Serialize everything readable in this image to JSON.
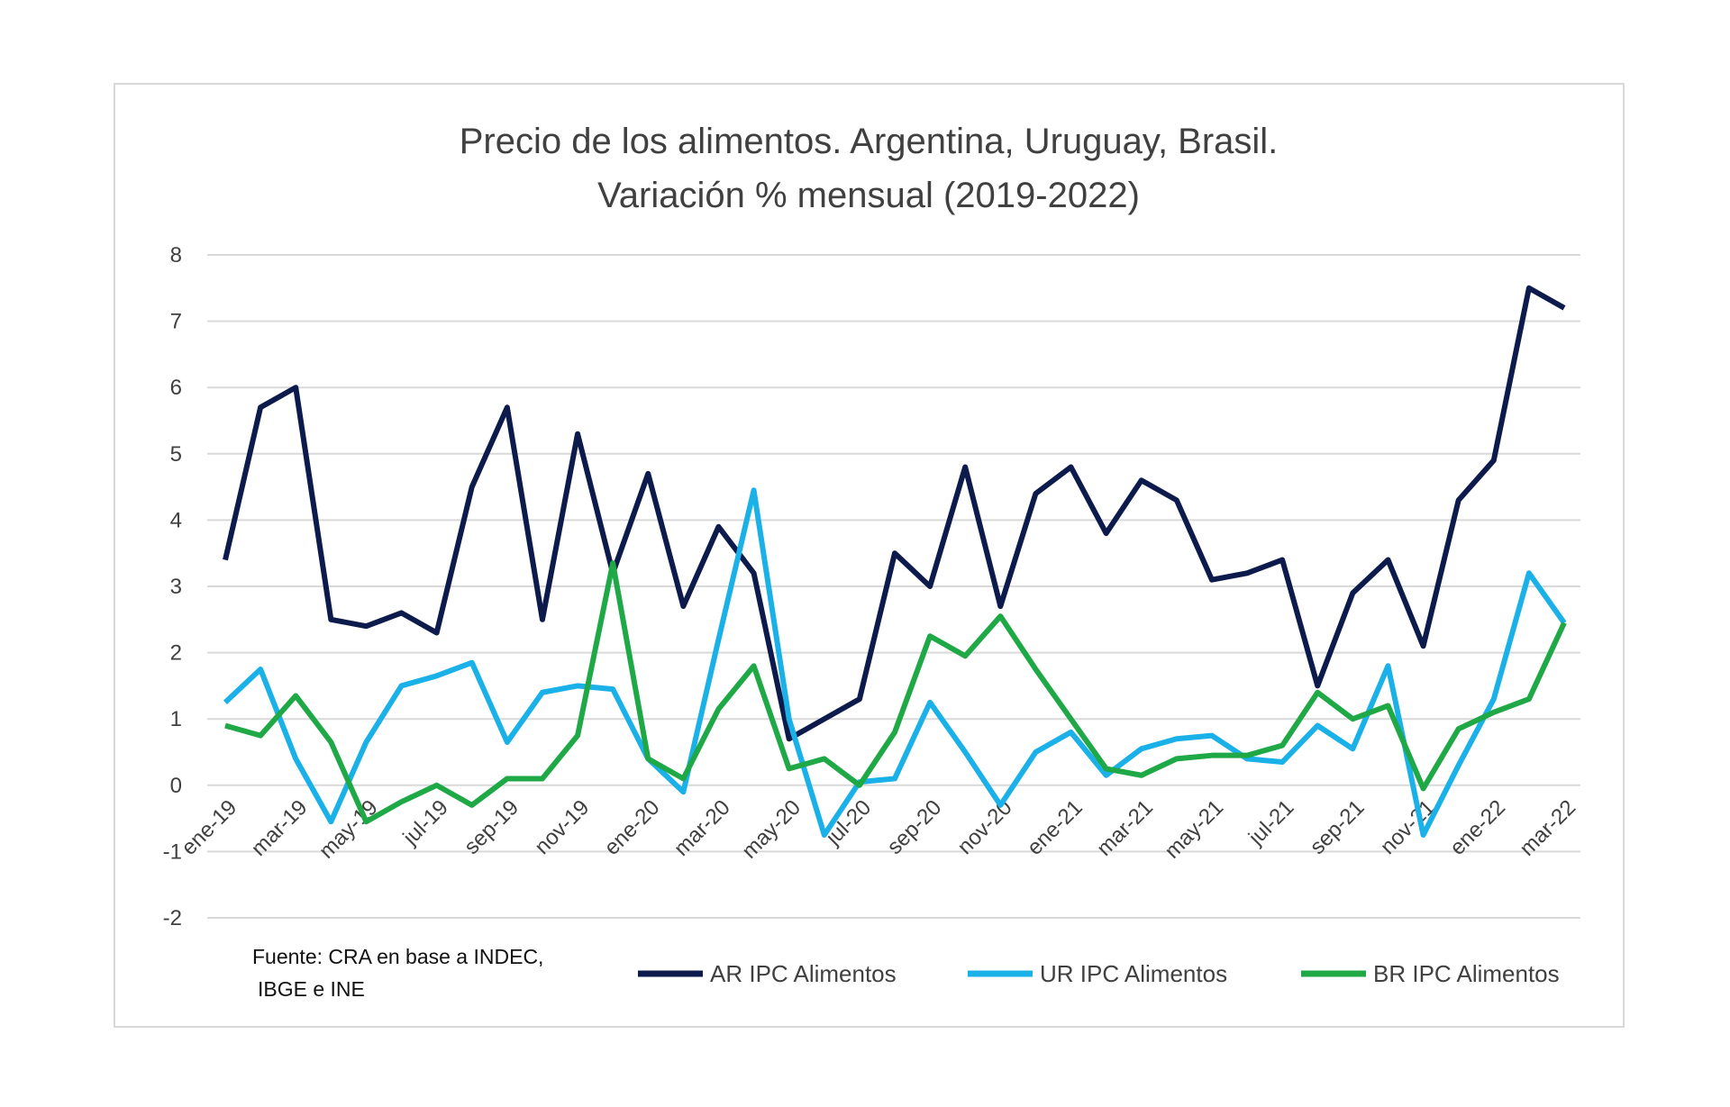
{
  "chart_data": {
    "type": "line",
    "title": [
      "Precio de los alimentos. Argentina, Uruguay, Brasil.",
      "Variación % mensual (2019-2022)"
    ],
    "source": [
      "Fuente: CRA en base a INDEC,",
      "IBGE e INE"
    ],
    "ylim": [
      -2,
      8
    ],
    "yticks": [
      -2,
      -1,
      0,
      1,
      2,
      3,
      4,
      5,
      6,
      7,
      8
    ],
    "grid": true,
    "legend_position": "bottom",
    "x": [
      "ene-19",
      "feb-19",
      "mar-19",
      "abr-19",
      "may-19",
      "jun-19",
      "jul-19",
      "ago-19",
      "sep-19",
      "oct-19",
      "nov-19",
      "dic-19",
      "ene-20",
      "feb-20",
      "mar-20",
      "abr-20",
      "may-20",
      "jun-20",
      "jul-20",
      "ago-20",
      "sep-20",
      "oct-20",
      "nov-20",
      "dic-20",
      "ene-21",
      "feb-21",
      "mar-21",
      "abr-21",
      "may-21",
      "jun-21",
      "jul-21",
      "ago-21",
      "sep-21",
      "oct-21",
      "nov-21",
      "dic-21",
      "ene-22",
      "feb-22",
      "mar-22"
    ],
    "xtick_labels": [
      "ene-19",
      "mar-19",
      "may-19",
      "jul-19",
      "sep-19",
      "nov-19",
      "ene-20",
      "mar-20",
      "may-20",
      "jul-20",
      "sep-20",
      "nov-20",
      "ene-21",
      "mar-21",
      "may-21",
      "jul-21",
      "sep-21",
      "nov-21",
      "ene-22",
      "mar-22"
    ],
    "series": [
      {
        "name": "AR IPC Alimentos",
        "color": "#0d1b4c",
        "values": [
          3.4,
          5.7,
          6.0,
          2.5,
          2.4,
          2.6,
          2.3,
          4.5,
          5.7,
          2.5,
          5.3,
          3.2,
          4.7,
          2.7,
          3.9,
          3.2,
          0.7,
          1.0,
          1.3,
          3.5,
          3.0,
          4.8,
          2.7,
          4.4,
          4.8,
          3.8,
          4.6,
          4.3,
          3.1,
          3.2,
          3.4,
          1.5,
          2.9,
          3.4,
          2.1,
          4.3,
          4.9,
          7.5,
          7.2
        ]
      },
      {
        "name": "UR IPC Alimentos",
        "color": "#1ab0e8",
        "values": [
          1.25,
          1.75,
          0.4,
          -0.55,
          0.65,
          1.5,
          1.65,
          1.85,
          0.65,
          1.4,
          1.5,
          1.45,
          0.4,
          -0.1,
          2.2,
          4.45,
          1.0,
          -0.75,
          0.05,
          0.1,
          1.25,
          0.5,
          -0.3,
          0.5,
          0.8,
          0.15,
          0.55,
          0.7,
          0.75,
          0.4,
          0.35,
          0.9,
          0.55,
          1.8,
          -0.75,
          0.3,
          1.3,
          3.2,
          2.45
        ]
      },
      {
        "name": "BR IPC Alimentos",
        "color": "#1fa846",
        "values": [
          0.9,
          0.75,
          1.35,
          0.65,
          -0.55,
          -0.25,
          0.0,
          -0.3,
          0.1,
          0.1,
          0.75,
          3.35,
          0.4,
          0.1,
          1.15,
          1.8,
          0.25,
          0.4,
          0.0,
          0.8,
          2.25,
          1.95,
          2.55,
          1.75,
          1.0,
          0.25,
          0.15,
          0.4,
          0.45,
          0.45,
          0.6,
          1.4,
          1.0,
          1.2,
          -0.05,
          0.85,
          1.1,
          1.3,
          2.45
        ]
      }
    ]
  }
}
